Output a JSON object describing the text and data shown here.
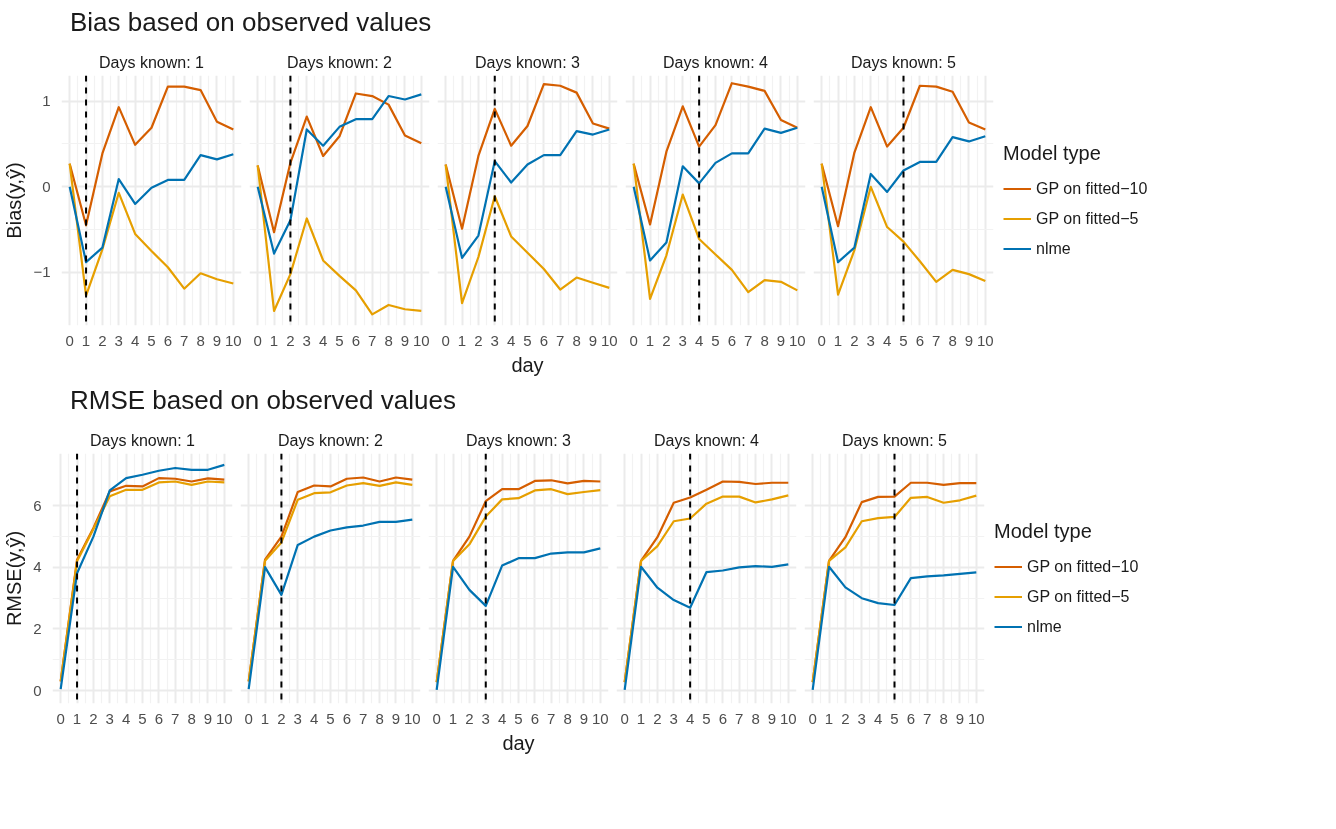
{
  "chart_data": [
    {
      "type": "line",
      "title": "Bias based on observed values",
      "subtitle": "Days known: 1",
      "ylabel": "Bias(y,ŷ)",
      "x": [
        0,
        1,
        2,
        3,
        4,
        5,
        6,
        7,
        8,
        9,
        10
      ],
      "xlim": [
        -0.5,
        10.5
      ],
      "xticks": [
        0,
        1,
        2,
        3,
        4,
        5,
        6,
        7,
        8,
        9,
        10
      ],
      "ylim": [
        -1.62,
        1.3
      ],
      "yticks": [
        {
          "value": -1,
          "label": "−1"
        },
        0,
        1
      ],
      "grid": true,
      "legend": false,
      "ref_lines": [
        {
          "axis": "x",
          "value": 1
        }
      ],
      "series": [
        {
          "color": "#d55e00",
          "values": [
            0.27,
            -0.45,
            0.39,
            0.93,
            0.49,
            0.69,
            1.17,
            1.17,
            1.13,
            0.76,
            0.67
          ]
        },
        {
          "color": "#e69f00",
          "values": [
            0.27,
            -1.27,
            -0.73,
            -0.07,
            -0.55,
            -0.75,
            -0.94,
            -1.19,
            -1.01,
            -1.08,
            -1.13
          ]
        },
        {
          "color": "#0072b2",
          "values": [
            0,
            -0.88,
            -0.71,
            0.09,
            -0.2,
            -0.01,
            0.08,
            0.08,
            0.37,
            0.32,
            0.38
          ]
        }
      ]
    },
    {
      "type": "line",
      "subtitle": "Days known: 2",
      "x": [
        0,
        1,
        2,
        3,
        4,
        5,
        6,
        7,
        8,
        9,
        10
      ],
      "xlim": [
        -0.5,
        10.5
      ],
      "xticks": [
        0,
        1,
        2,
        3,
        4,
        5,
        6,
        7,
        8,
        9,
        10
      ],
      "ylim": [
        -1.62,
        1.3
      ],
      "yticks": [
        -1,
        0,
        1
      ],
      "tick_labels": "x",
      "grid": true,
      "legend": false,
      "ref_lines": [
        {
          "axis": "x",
          "value": 2
        }
      ],
      "series": [
        {
          "color": "#d55e00",
          "values": [
            0.25,
            -0.53,
            0.28,
            0.82,
            0.36,
            0.59,
            1.09,
            1.06,
            0.96,
            0.6,
            0.51
          ]
        },
        {
          "color": "#e69f00",
          "values": [
            0.25,
            -1.45,
            -1.02,
            -0.37,
            -0.86,
            -1.04,
            -1.21,
            -1.49,
            -1.38,
            -1.43,
            -1.45
          ]
        },
        {
          "color": "#0072b2",
          "values": [
            0,
            -0.78,
            -0.39,
            0.67,
            0.48,
            0.7,
            0.79,
            0.79,
            1.06,
            1.02,
            1.08
          ]
        }
      ]
    },
    {
      "type": "line",
      "subtitle": "Days known: 3",
      "xlabel": "day",
      "x": [
        0,
        1,
        2,
        3,
        4,
        5,
        6,
        7,
        8,
        9,
        10
      ],
      "xlim": [
        -0.5,
        10.5
      ],
      "xticks": [
        0,
        1,
        2,
        3,
        4,
        5,
        6,
        7,
        8,
        9,
        10
      ],
      "ylim": [
        -1.62,
        1.3
      ],
      "yticks": [
        -1,
        0,
        1
      ],
      "tick_labels": "x",
      "grid": true,
      "legend": false,
      "ref_lines": [
        {
          "axis": "x",
          "value": 3
        }
      ],
      "series": [
        {
          "color": "#d55e00",
          "values": [
            0.26,
            -0.49,
            0.36,
            0.91,
            0.48,
            0.71,
            1.2,
            1.18,
            1.1,
            0.74,
            0.68
          ]
        },
        {
          "color": "#e69f00",
          "values": [
            0.26,
            -1.36,
            -0.82,
            -0.11,
            -0.58,
            -0.77,
            -0.96,
            -1.2,
            -1.06,
            -1.12,
            -1.18
          ]
        },
        {
          "color": "#0072b2",
          "values": [
            0,
            -0.83,
            -0.57,
            0.3,
            0.05,
            0.26,
            0.37,
            0.37,
            0.65,
            0.61,
            0.67
          ]
        }
      ]
    },
    {
      "type": "line",
      "subtitle": "Days known: 4",
      "x": [
        0,
        1,
        2,
        3,
        4,
        5,
        6,
        7,
        8,
        9,
        10
      ],
      "xlim": [
        -0.5,
        10.5
      ],
      "xticks": [
        0,
        1,
        2,
        3,
        4,
        5,
        6,
        7,
        8,
        9,
        10
      ],
      "ylim": [
        -1.62,
        1.3
      ],
      "yticks": [
        -1,
        0,
        1
      ],
      "tick_labels": "x",
      "grid": true,
      "legend": false,
      "ref_lines": [
        {
          "axis": "x",
          "value": 4
        }
      ],
      "series": [
        {
          "color": "#d55e00",
          "values": [
            0.27,
            -0.44,
            0.41,
            0.94,
            0.47,
            0.72,
            1.21,
            1.17,
            1.12,
            0.78,
            0.69
          ]
        },
        {
          "color": "#e69f00",
          "values": [
            0.27,
            -1.31,
            -0.8,
            -0.09,
            -0.61,
            -0.79,
            -0.97,
            -1.23,
            -1.09,
            -1.11,
            -1.21
          ]
        },
        {
          "color": "#0072b2",
          "values": [
            0,
            -0.86,
            -0.65,
            0.24,
            0.04,
            0.28,
            0.39,
            0.39,
            0.68,
            0.63,
            0.69
          ]
        }
      ]
    },
    {
      "type": "line",
      "subtitle": "Days known: 5",
      "legend_title": "Model type",
      "x": [
        0,
        1,
        2,
        3,
        4,
        5,
        6,
        7,
        8,
        9,
        10
      ],
      "xlim": [
        -0.5,
        10.5
      ],
      "xticks": [
        0,
        1,
        2,
        3,
        4,
        5,
        6,
        7,
        8,
        9,
        10
      ],
      "ylim": [
        -1.62,
        1.3
      ],
      "yticks": [
        -1,
        0,
        1
      ],
      "tick_labels": "x",
      "grid": true,
      "legend": "right",
      "ref_lines": [
        {
          "axis": "x",
          "value": 5
        }
      ],
      "series": [
        {
          "name": "GP on fitted−10",
          "color": "#d55e00",
          "values": [
            0.27,
            -0.46,
            0.4,
            0.93,
            0.47,
            0.69,
            1.18,
            1.17,
            1.11,
            0.75,
            0.67
          ]
        },
        {
          "name": "GP on fitted−5",
          "color": "#e69f00",
          "values": [
            0.27,
            -1.26,
            -0.74,
            0,
            -0.47,
            -0.64,
            -0.87,
            -1.11,
            -0.97,
            -1.02,
            -1.1
          ]
        },
        {
          "name": "nlme",
          "color": "#0072b2",
          "values": [
            0,
            -0.88,
            -0.71,
            0.15,
            -0.06,
            0.19,
            0.29,
            0.29,
            0.58,
            0.53,
            0.59
          ]
        }
      ]
    },
    {
      "type": "line",
      "title": "RMSE based on observed values",
      "subtitle": "Days known: 1",
      "ylabel": "RMSE(y,ŷ)",
      "x": [
        0,
        1,
        2,
        3,
        4,
        5,
        6,
        7,
        8,
        9,
        10
      ],
      "xlim": [
        -0.5,
        10.5
      ],
      "xticks": [
        0,
        1,
        2,
        3,
        4,
        5,
        6,
        7,
        8,
        9,
        10
      ],
      "ylim": [
        -0.42,
        7.7
      ],
      "yticks": [
        0,
        2,
        4,
        6
      ],
      "grid": true,
      "legend": false,
      "ref_lines": [
        {
          "axis": "x",
          "value": 1
        }
      ],
      "series": [
        {
          "color": "#d55e00",
          "values": [
            0.3,
            4.25,
            5.28,
            6.47,
            6.65,
            6.63,
            6.9,
            6.88,
            6.79,
            6.89,
            6.85
          ]
        },
        {
          "color": "#e69f00",
          "values": [
            0.3,
            4.2,
            5.25,
            6.31,
            6.52,
            6.52,
            6.76,
            6.79,
            6.68,
            6.79,
            6.76
          ]
        },
        {
          "color": "#0072b2",
          "values": [
            0.05,
            3.81,
            5.0,
            6.5,
            6.9,
            7.01,
            7.14,
            7.23,
            7.17,
            7.17,
            7.33
          ]
        }
      ]
    },
    {
      "type": "line",
      "subtitle": "Days known: 2",
      "x": [
        0,
        1,
        2,
        3,
        4,
        5,
        6,
        7,
        8,
        9,
        10
      ],
      "xlim": [
        -0.5,
        10.5
      ],
      "xticks": [
        0,
        1,
        2,
        3,
        4,
        5,
        6,
        7,
        8,
        9,
        10
      ],
      "ylim": [
        -0.42,
        7.7
      ],
      "yticks": [
        0,
        2,
        4,
        6
      ],
      "tick_labels": "x",
      "grid": true,
      "legend": false,
      "ref_lines": [
        {
          "axis": "x",
          "value": 2
        }
      ],
      "series": [
        {
          "color": "#d55e00",
          "values": [
            0.3,
            4.25,
            5.0,
            6.45,
            6.66,
            6.63,
            6.88,
            6.92,
            6.79,
            6.92,
            6.85
          ]
        },
        {
          "color": "#e69f00",
          "values": [
            0.3,
            4.22,
            4.81,
            6.2,
            6.41,
            6.44,
            6.66,
            6.74,
            6.65,
            6.76,
            6.68
          ]
        },
        {
          "color": "#0072b2",
          "values": [
            0.05,
            4.01,
            3.11,
            4.73,
            5.0,
            5.2,
            5.3,
            5.36,
            5.48,
            5.48,
            5.55
          ]
        }
      ]
    },
    {
      "type": "line",
      "subtitle": "Days known: 3",
      "xlabel": "day",
      "x": [
        0,
        1,
        2,
        3,
        4,
        5,
        6,
        7,
        8,
        9,
        10
      ],
      "xlim": [
        -0.5,
        10.5
      ],
      "xticks": [
        0,
        1,
        2,
        3,
        4,
        5,
        6,
        7,
        8,
        9,
        10
      ],
      "ylim": [
        -0.42,
        7.7
      ],
      "yticks": [
        0,
        2,
        4,
        6
      ],
      "tick_labels": "x",
      "grid": true,
      "legend": false,
      "ref_lines": [
        {
          "axis": "x",
          "value": 3
        }
      ],
      "series": [
        {
          "color": "#d55e00",
          "values": [
            0.27,
            4.21,
            5.0,
            6.15,
            6.54,
            6.54,
            6.81,
            6.83,
            6.73,
            6.81,
            6.79
          ]
        },
        {
          "color": "#e69f00",
          "values": [
            0.27,
            4.21,
            4.75,
            5.65,
            6.21,
            6.25,
            6.5,
            6.54,
            6.38,
            6.45,
            6.51
          ]
        },
        {
          "color": "#0072b2",
          "values": [
            0.02,
            4.02,
            3.27,
            2.75,
            4.06,
            4.3,
            4.3,
            4.45,
            4.49,
            4.49,
            4.62
          ]
        }
      ]
    },
    {
      "type": "line",
      "subtitle": "Days known: 4",
      "x": [
        0,
        1,
        2,
        3,
        4,
        5,
        6,
        7,
        8,
        9,
        10
      ],
      "xlim": [
        -0.5,
        10.5
      ],
      "xticks": [
        0,
        1,
        2,
        3,
        4,
        5,
        6,
        7,
        8,
        9,
        10
      ],
      "ylim": [
        -0.42,
        7.7
      ],
      "yticks": [
        0,
        2,
        4,
        6
      ],
      "tick_labels": "x",
      "grid": true,
      "legend": false,
      "ref_lines": [
        {
          "axis": "x",
          "value": 4
        }
      ],
      "series": [
        {
          "color": "#d55e00",
          "values": [
            0.27,
            4.21,
            4.98,
            6.1,
            6.27,
            6.52,
            6.79,
            6.78,
            6.71,
            6.75,
            6.75
          ]
        },
        {
          "color": "#e69f00",
          "values": [
            0.27,
            4.21,
            4.69,
            5.5,
            5.59,
            6.07,
            6.3,
            6.3,
            6.11,
            6.21,
            6.34
          ]
        },
        {
          "color": "#0072b2",
          "values": [
            0.02,
            4.02,
            3.34,
            2.94,
            2.69,
            3.85,
            3.9,
            4.0,
            4.04,
            4.02,
            4.1
          ]
        }
      ]
    },
    {
      "type": "line",
      "subtitle": "Days known: 5",
      "legend_title": "Model type",
      "x": [
        0,
        1,
        2,
        3,
        4,
        5,
        6,
        7,
        8,
        9,
        10
      ],
      "xlim": [
        -0.5,
        10.5
      ],
      "xticks": [
        0,
        1,
        2,
        3,
        4,
        5,
        6,
        7,
        8,
        9,
        10
      ],
      "ylim": [
        -0.42,
        7.7
      ],
      "yticks": [
        0,
        2,
        4,
        6
      ],
      "tick_labels": "x",
      "grid": true,
      "legend": "right",
      "ref_lines": [
        {
          "axis": "x",
          "value": 5
        }
      ],
      "series": [
        {
          "name": "GP on fitted−10",
          "color": "#d55e00",
          "values": [
            0.27,
            4.21,
            4.98,
            6.12,
            6.29,
            6.3,
            6.75,
            6.75,
            6.68,
            6.74,
            6.74
          ]
        },
        {
          "name": "GP on fitted−5",
          "color": "#e69f00",
          "values": [
            0.27,
            4.21,
            4.65,
            5.5,
            5.6,
            5.64,
            6.26,
            6.29,
            6.1,
            6.18,
            6.33
          ]
        },
        {
          "name": "nlme",
          "color": "#0072b2",
          "values": [
            0.02,
            4.02,
            3.35,
            3.0,
            2.84,
            2.78,
            3.65,
            3.71,
            3.74,
            3.79,
            3.84
          ]
        }
      ]
    }
  ]
}
